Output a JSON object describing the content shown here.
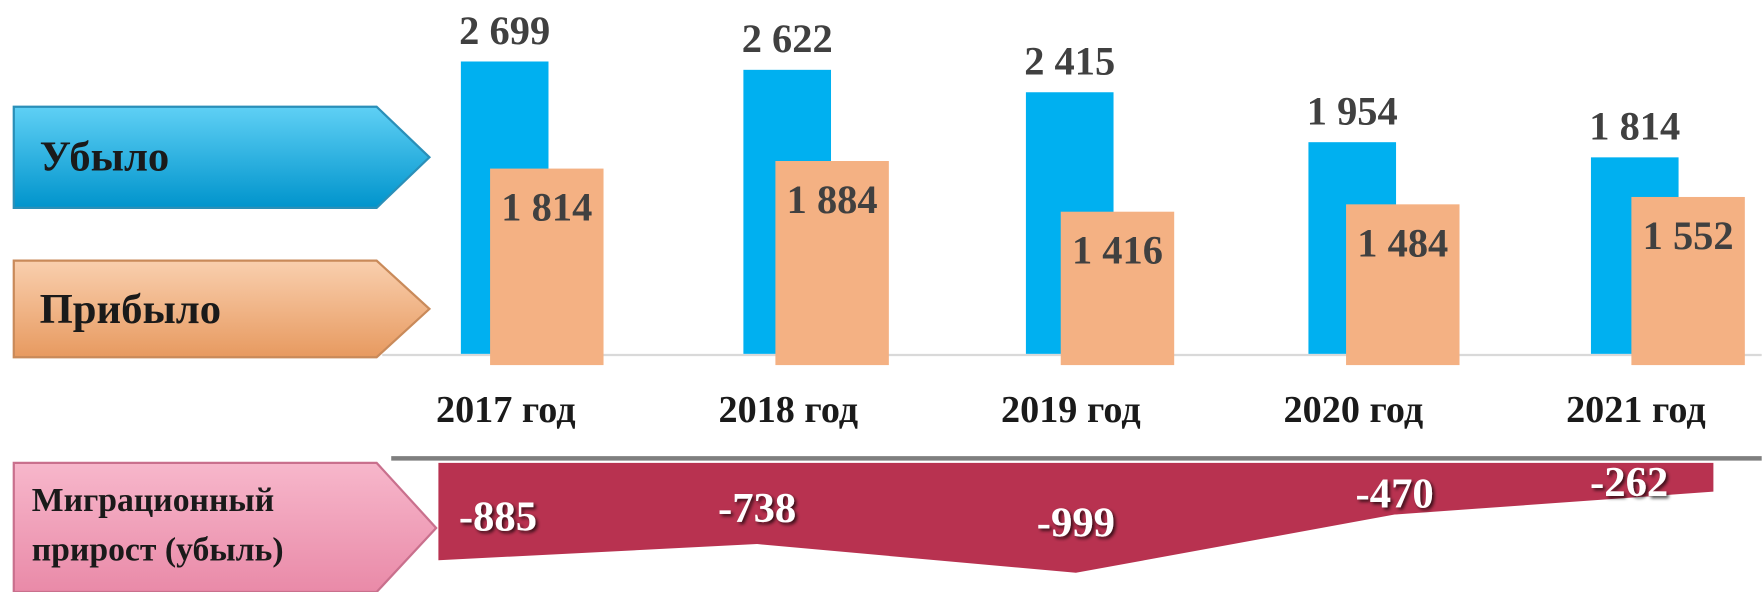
{
  "chart_data": [
    {
      "type": "bar",
      "categories": [
        "2017 год",
        "2018 год",
        "2019 год",
        "2020 год",
        "2021 год"
      ],
      "series": [
        {
          "name": "Убыло",
          "color": "#00b0f0",
          "values": [
            2699,
            2622,
            2415,
            1954,
            1814
          ],
          "value_labels": [
            "2 699",
            "2 622",
            "2 415",
            "1 954",
            "1 814"
          ]
        },
        {
          "name": "Прибыло",
          "color": "#f4b183",
          "values": [
            1814,
            1884,
            1416,
            1484,
            1552
          ],
          "value_labels": [
            "1 814",
            "1 884",
            "1 416",
            "1 484",
            "1 552"
          ]
        }
      ],
      "ylim": [
        0,
        2800
      ]
    },
    {
      "type": "area",
      "series": [
        {
          "name": "Миграционный прирост (убыль)",
          "color": "#b83250",
          "values": [
            -885,
            -738,
            -999,
            -470,
            -262
          ]
        }
      ],
      "ylim": [
        -1000,
        0
      ]
    }
  ]
}
